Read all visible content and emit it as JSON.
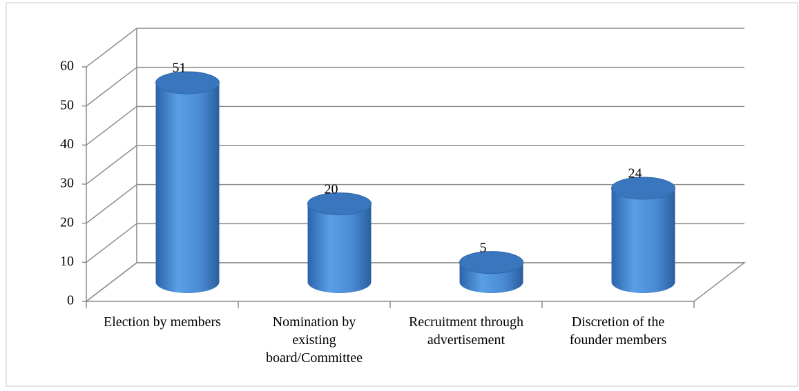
{
  "chart_data": {
    "type": "bar3d",
    "categories": [
      "Election by members",
      "Nomination by existing board/Committee",
      "Recruitment through advertisement",
      "Discretion of the founder members"
    ],
    "values": [
      51,
      20,
      5,
      24
    ],
    "color": "#4a8ad4",
    "ylim": [
      0,
      60
    ],
    "yticks": [
      0,
      10,
      20,
      30,
      40,
      50,
      60
    ],
    "grid": true
  }
}
